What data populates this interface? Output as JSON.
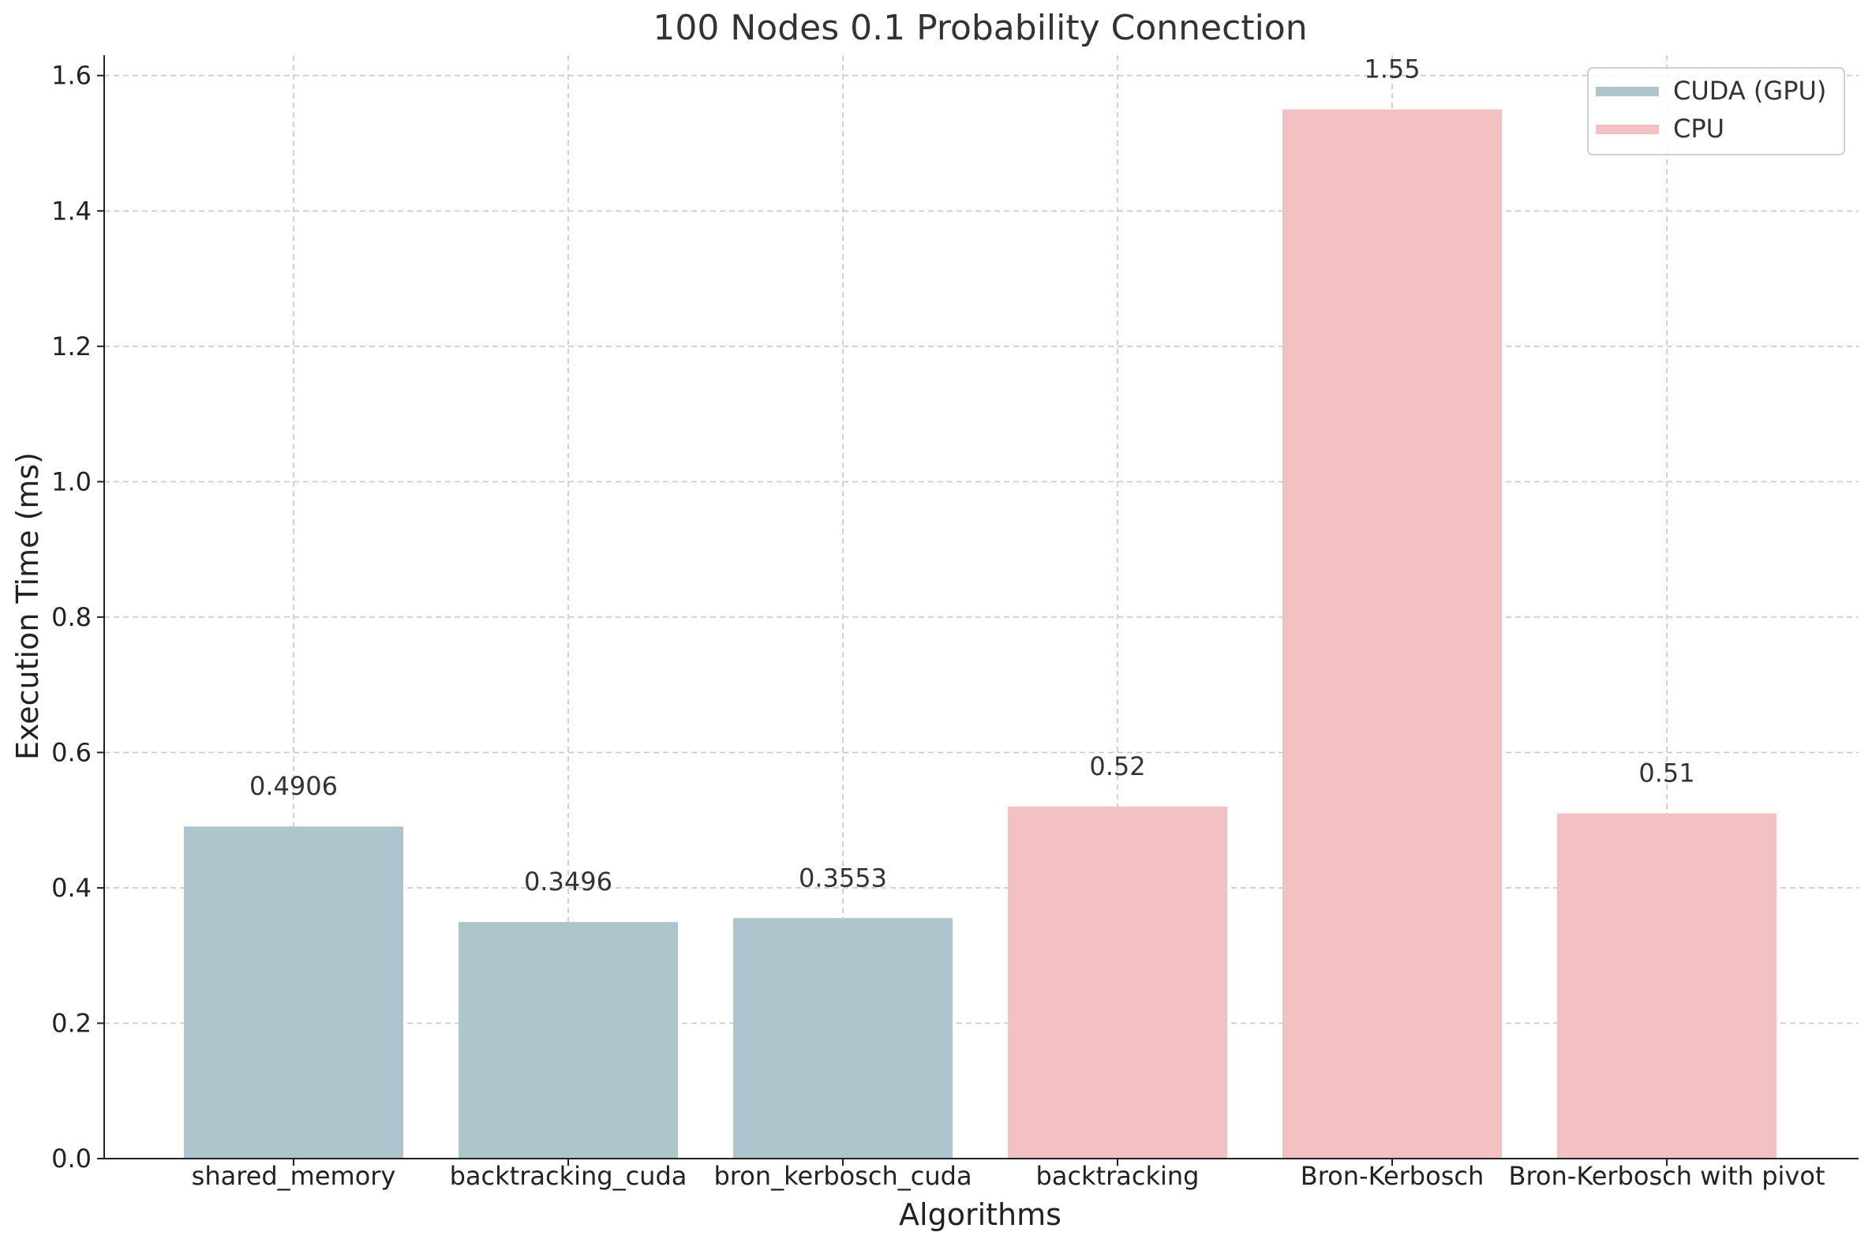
{
  "chart_data": {
    "type": "bar",
    "title": "100 Nodes 0.1 Probability Connection",
    "xlabel": "Algorithms",
    "ylabel": "Execution Time (ms)",
    "ylim": [
      0,
      1.63
    ],
    "yticks": [
      0.0,
      0.2,
      0.4,
      0.6,
      0.8,
      1.0,
      1.2,
      1.4,
      1.6
    ],
    "ytick_labels": [
      "0.0",
      "0.2",
      "0.4",
      "0.6",
      "0.8",
      "1.0",
      "1.2",
      "1.4",
      "1.6"
    ],
    "grid": true,
    "legend_position": "top-right",
    "categories": [
      "shared_memory",
      "backtracking_cuda",
      "bron_kerbosch_cuda",
      "backtracking",
      "Bron-Kerbosch",
      "Bron-Kerbosch with pivot"
    ],
    "values": [
      0.4906,
      0.3496,
      0.3553,
      0.52,
      1.55,
      0.51
    ],
    "value_labels": [
      "0.4906",
      "0.3496",
      "0.3553",
      "0.52",
      "1.55",
      "0.51"
    ],
    "bar_series": [
      "CUDA (GPU)",
      "CUDA (GPU)",
      "CUDA (GPU)",
      "CPU",
      "CPU",
      "CPU"
    ],
    "series": [
      {
        "name": "CUDA (GPU)",
        "color": "#aec5ce"
      },
      {
        "name": "CPU",
        "color": "#f4c1c2"
      }
    ]
  }
}
